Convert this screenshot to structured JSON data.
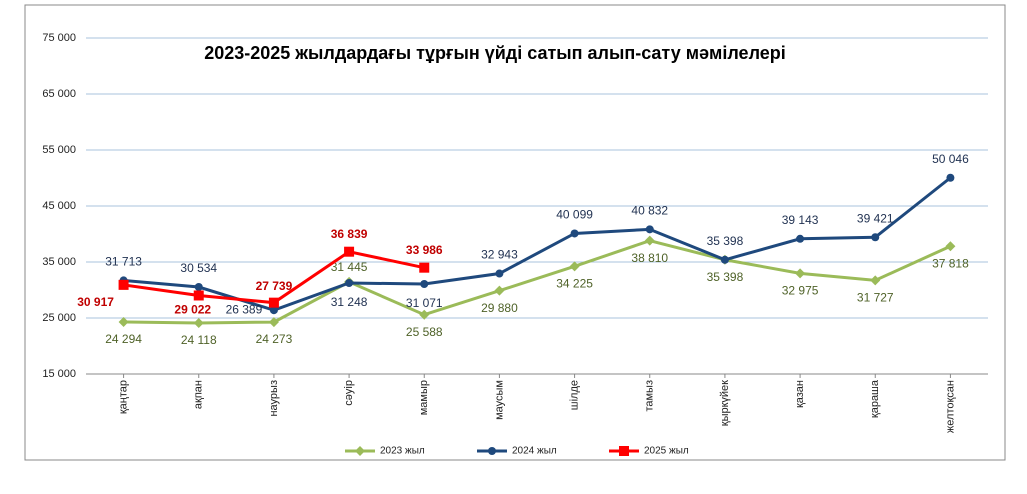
{
  "chart_data": {
    "type": "line",
    "title": "2023-2025 жылдардағы тұрғын үйді сатып алып-сату мәмілелері",
    "categories": [
      "қаңтар",
      "ақпан",
      "наурыз",
      "сәуір",
      "мамыр",
      "маусым",
      "шілде",
      "тамыз",
      "қыркүйек",
      "қазан",
      "қараша",
      "желтоқсан"
    ],
    "series": [
      {
        "name": "2023 жыл",
        "color": "#9bbb59",
        "label_color": "#4f6228",
        "marker": "diamond",
        "values": [
          24294,
          24118,
          24273,
          31445,
          25588,
          29880,
          34225,
          38810,
          35398,
          32975,
          31727,
          37818
        ],
        "value_labels": [
          "24 294",
          "24 118",
          "24 273",
          "31 445",
          "25 588",
          "29 880",
          "34 225",
          "38 810",
          "35 398",
          "32 975",
          "31 727",
          "37 818"
        ]
      },
      {
        "name": "2024 жыл",
        "color": "#1f497d",
        "label_color": "#1f3050",
        "marker": "circle",
        "values": [
          31713,
          30534,
          26389,
          31248,
          31071,
          32943,
          40099,
          40832,
          35398,
          39143,
          39421,
          50046
        ],
        "value_labels": [
          "31 713",
          "30 534",
          "26 389",
          "31 248",
          "31 071",
          "32 943",
          "40 099",
          "40 832",
          "35 398",
          "39 143",
          "39 421",
          "50 046"
        ]
      },
      {
        "name": "2025 жыл",
        "color": "#ff0000",
        "label_color": "#c00000",
        "marker": "square",
        "values": [
          30917,
          29022,
          27739,
          36839,
          33986,
          null,
          null,
          null,
          null,
          null,
          null,
          null
        ],
        "value_labels": [
          "30 917",
          "29 022",
          "27 739",
          "36 839",
          "33 986",
          null,
          null,
          null,
          null,
          null,
          null,
          null
        ]
      }
    ],
    "ylim": [
      15000,
      75000
    ],
    "yticks": [
      {
        "value": 15000,
        "label": "15 000"
      },
      {
        "value": 25000,
        "label": "25 000"
      },
      {
        "value": 35000,
        "label": "35 000"
      },
      {
        "value": 45000,
        "label": "45 000"
      },
      {
        "value": 55000,
        "label": "55 000"
      },
      {
        "value": 65000,
        "label": "65 000"
      },
      {
        "value": 75000,
        "label": "75 000"
      }
    ],
    "grid": true,
    "legend": "bottom"
  }
}
